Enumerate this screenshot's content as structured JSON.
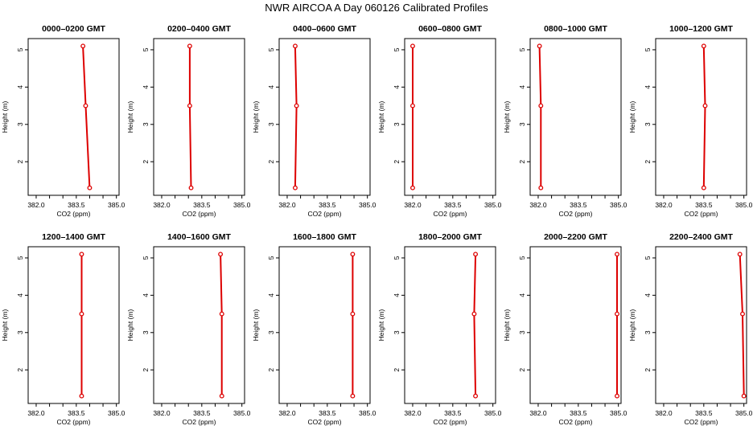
{
  "title": "NWR AIRCOA A  Day 060126  Calibrated Profiles",
  "chart_data": {
    "type": "line",
    "xlabel": "CO2 (ppm)",
    "ylabel": "Height (m)",
    "xlim": [
      381.7,
      385.1
    ],
    "ylim": [
      1.1,
      5.3
    ],
    "xticks": [
      382.0,
      383.5,
      385.0
    ],
    "xtick_labels": [
      "382.0",
      "383.5",
      "385.0"
    ],
    "yticks": [
      2,
      3,
      4,
      5
    ],
    "ytick_labels": [
      "2",
      "3",
      "4",
      "5"
    ],
    "heights": [
      1.3,
      3.5,
      5.1
    ],
    "line_color": "#dd0000",
    "panels": [
      {
        "title": "0000–0200 GMT",
        "co2": [
          384.0,
          383.85,
          383.75
        ]
      },
      {
        "title": "0200–0400 GMT",
        "co2": [
          383.1,
          383.05,
          383.05
        ]
      },
      {
        "title": "0400–0600 GMT",
        "co2": [
          382.3,
          382.35,
          382.3
        ]
      },
      {
        "title": "0600–0800 GMT",
        "co2": [
          382.0,
          382.0,
          382.0
        ]
      },
      {
        "title": "0800–1000 GMT",
        "co2": [
          382.1,
          382.1,
          382.05
        ]
      },
      {
        "title": "1000–1200 GMT",
        "co2": [
          383.5,
          383.55,
          383.5
        ]
      },
      {
        "title": "1200–1400 GMT",
        "co2": [
          383.7,
          383.7,
          383.7
        ]
      },
      {
        "title": "1400–1600 GMT",
        "co2": [
          384.25,
          384.25,
          384.2
        ]
      },
      {
        "title": "1600–1800 GMT",
        "co2": [
          384.45,
          384.45,
          384.45
        ]
      },
      {
        "title": "1800–2000 GMT",
        "co2": [
          384.35,
          384.3,
          384.35
        ]
      },
      {
        "title": "2000–2200 GMT",
        "co2": [
          384.95,
          384.95,
          384.95
        ]
      },
      {
        "title": "2200–2400 GMT",
        "co2": [
          385.0,
          384.95,
          384.85
        ]
      }
    ]
  }
}
